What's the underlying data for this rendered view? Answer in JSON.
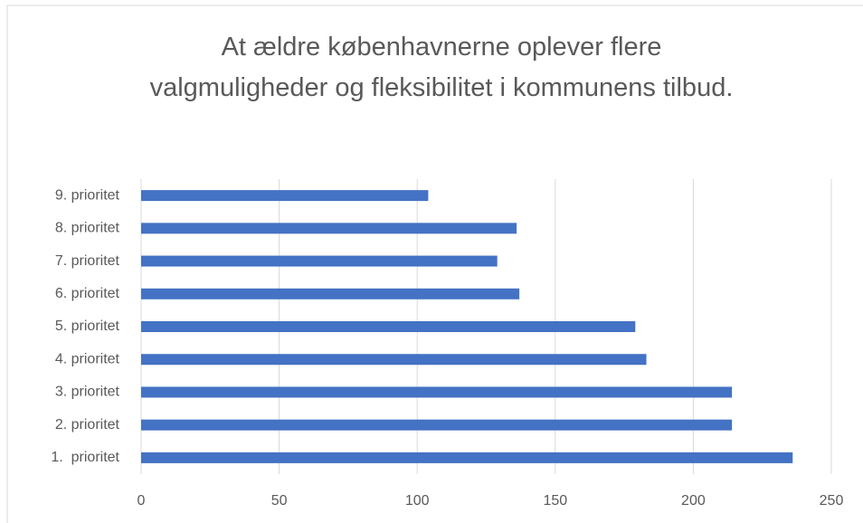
{
  "chart_data": {
    "type": "hbar",
    "title": "At ældre københavnerne oplever flere valgmuligheder og fleksibilitet i kommunens tilbud.",
    "categories": [
      "1.  prioritet",
      "2. prioritet",
      "3. prioritet",
      "4. prioritet",
      "5. prioritet",
      "6. prioritet",
      "7. prioritet",
      "8. prioritet",
      "9. prioritet"
    ],
    "values": [
      236,
      214,
      214,
      183,
      179,
      137,
      129,
      136,
      104
    ],
    "color": "#4472c4",
    "xlim": [
      0,
      250
    ],
    "xticks": [
      0,
      50,
      100,
      150,
      200,
      250
    ],
    "grid": true
  }
}
